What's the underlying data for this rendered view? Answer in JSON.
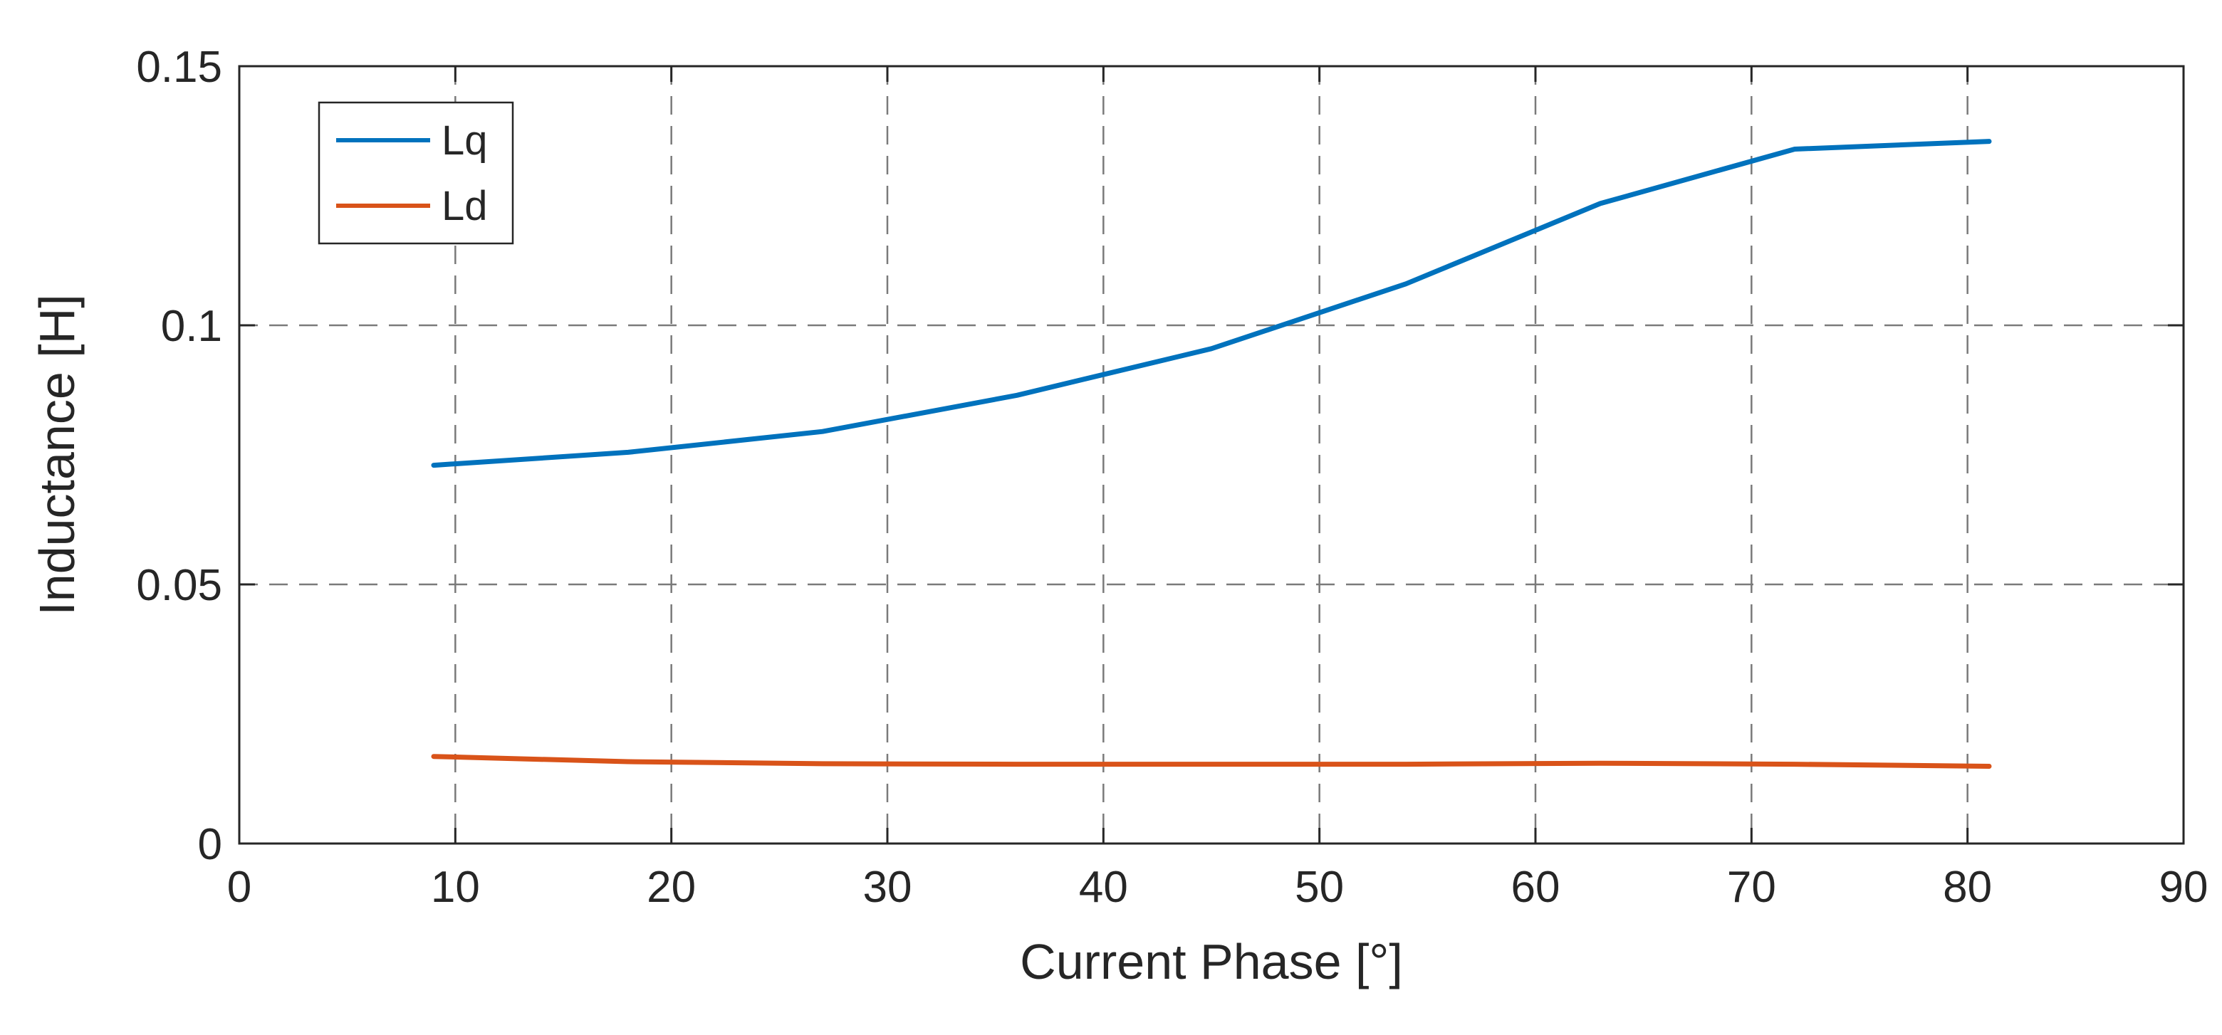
{
  "chart_data": {
    "type": "line",
    "title": "",
    "xlabel": "Current Phase [°]",
    "ylabel": "Inductance [H]",
    "xlim": [
      0,
      90
    ],
    "ylim": [
      0,
      0.15
    ],
    "xticks": [
      0,
      10,
      20,
      30,
      40,
      50,
      60,
      70,
      80,
      90
    ],
    "xtick_labels": [
      "0",
      "10",
      "20",
      "30",
      "40",
      "50",
      "60",
      "70",
      "80",
      "90"
    ],
    "yticks": [
      0,
      0.05,
      0.1,
      0.15
    ],
    "ytick_labels": [
      "0",
      "0.05",
      "0.1",
      "0.15"
    ],
    "grid": true,
    "legend_position": "top-left",
    "series": [
      {
        "name": "Lq",
        "color": "#0072BD",
        "x": [
          9,
          18,
          27,
          36,
          45,
          54,
          63,
          72,
          81
        ],
        "y": [
          0.073,
          0.0755,
          0.0795,
          0.0865,
          0.0955,
          0.108,
          0.1235,
          0.134,
          0.1355
        ]
      },
      {
        "name": "Ld",
        "color": "#D95319",
        "x": [
          9,
          18,
          27,
          36,
          45,
          54,
          63,
          72,
          81
        ],
        "y": [
          0.0168,
          0.0158,
          0.0154,
          0.0153,
          0.0153,
          0.0153,
          0.0155,
          0.0153,
          0.0149
        ]
      }
    ]
  }
}
